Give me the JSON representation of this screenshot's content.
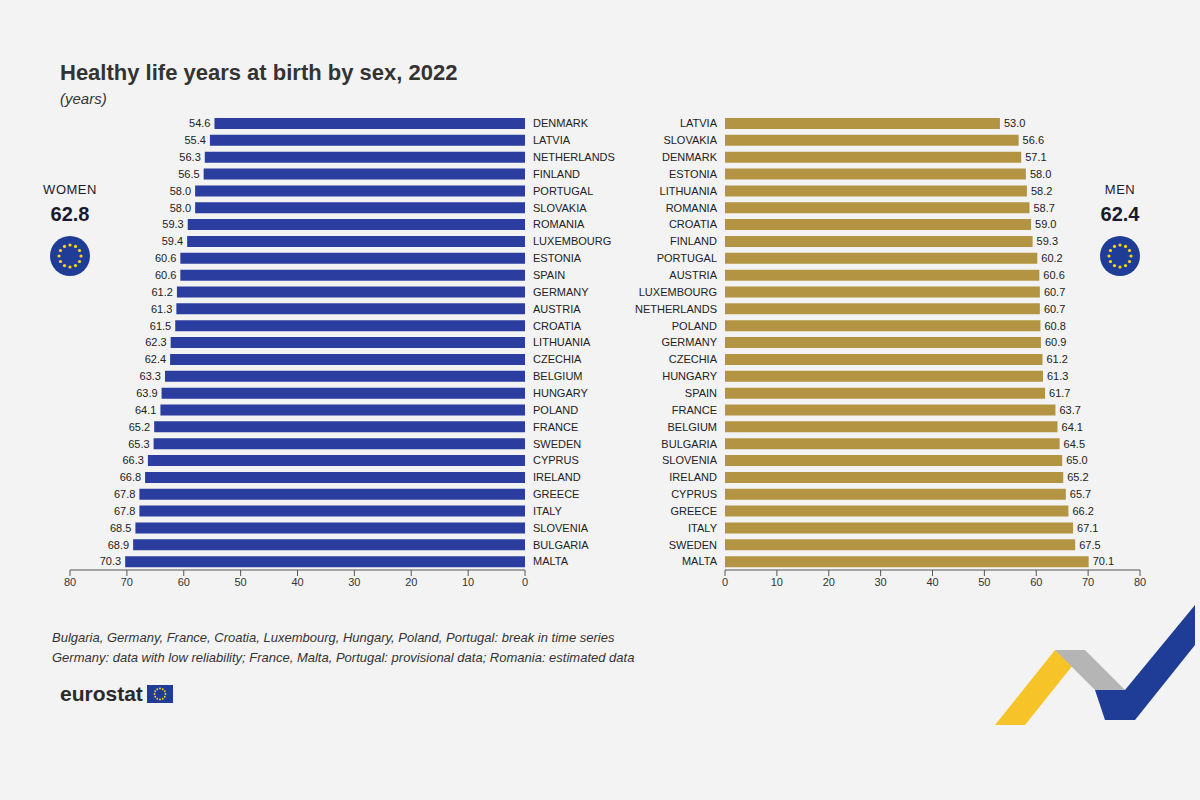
{
  "title": "Healthy life years at birth by sex, 2022",
  "subtitle": "(years)",
  "notes": [
    "Bulgaria, Germany, France, Croatia, Luxembourg, Hungary, Poland, Portugal: break in time series",
    "Germany: data with low reliability; France, Malta, Portugal: provisional data; Romania: estimated data"
  ],
  "source": "eurostat",
  "chart_data": [
    {
      "type": "bar",
      "orientation": "horizontal",
      "annotation": {
        "text": "WOMEN",
        "value": 62.8
      },
      "categories": [
        "DENMARK",
        "LATVIA",
        "NETHERLANDS",
        "FINLAND",
        "PORTUGAL",
        "SLOVAKIA",
        "ROMANIA",
        "LUXEMBOURG",
        "ESTONIA",
        "SPAIN",
        "GERMANY",
        "AUSTRIA",
        "CROATIA",
        "LITHUANIA",
        "CZECHIA",
        "BELGIUM",
        "HUNGARY",
        "POLAND",
        "FRANCE",
        "SWEDEN",
        "CYPRUS",
        "IRELAND",
        "GREECE",
        "ITALY",
        "SLOVENIA",
        "BULGARIA",
        "MALTA"
      ],
      "values": [
        54.6,
        55.4,
        56.3,
        56.5,
        58.0,
        58.0,
        59.3,
        59.4,
        60.6,
        60.6,
        61.2,
        61.3,
        61.5,
        62.3,
        62.4,
        63.3,
        63.9,
        64.1,
        65.2,
        65.3,
        66.3,
        66.8,
        67.8,
        67.8,
        68.5,
        68.9,
        70.3
      ],
      "value_labels": [
        "54.6",
        "55.4",
        "56.3",
        "56.5",
        "58.0",
        "58.0",
        "59.3",
        "59.4",
        "60.6",
        "60.6",
        "61.2",
        "61.3",
        "61.5",
        "62.3",
        "62.4",
        "63.3",
        "63.9",
        "64.1",
        "65.2",
        "65.3",
        "66.3",
        "66.8",
        "67.8",
        "67.8",
        "68.5",
        "68.9",
        "70.3"
      ],
      "color": "#2b3d9f",
      "xlim": [
        80,
        0
      ],
      "xticks": [
        80,
        70,
        60,
        50,
        40,
        30,
        20,
        10,
        0
      ],
      "grid": false,
      "data_labels": true
    },
    {
      "type": "bar",
      "orientation": "horizontal",
      "annotation": {
        "text": "MEN",
        "value": 62.4
      },
      "categories": [
        "LATVIA",
        "SLOVAKIA",
        "DENMARK",
        "ESTONIA",
        "LITHUANIA",
        "ROMANIA",
        "CROATIA",
        "FINLAND",
        "PORTUGAL",
        "AUSTRIA",
        "LUXEMBOURG",
        "NETHERLANDS",
        "POLAND",
        "GERMANY",
        "CZECHIA",
        "HUNGARY",
        "SPAIN",
        "FRANCE",
        "BELGIUM",
        "BULGARIA",
        "SLOVENIA",
        "IRELAND",
        "CYPRUS",
        "GREECE",
        "ITALY",
        "SWEDEN",
        "MALTA"
      ],
      "values": [
        53.0,
        56.6,
        57.1,
        58.0,
        58.2,
        58.7,
        59.0,
        59.3,
        60.2,
        60.6,
        60.7,
        60.7,
        60.8,
        60.9,
        61.2,
        61.3,
        61.7,
        63.7,
        64.1,
        64.5,
        65.0,
        65.2,
        65.7,
        66.2,
        67.1,
        67.5,
        70.1
      ],
      "value_labels": [
        "53.0",
        "56.6",
        "57.1",
        "58.0",
        "58.2",
        "58.7",
        "59.0",
        "59.3",
        "60.2",
        "60.6",
        "60.7",
        "60.7",
        "60.8",
        "60.9",
        "61.2",
        "61.3",
        "61.7",
        "63.7",
        "64.1",
        "64.5",
        "65.0",
        "65.2",
        "65.7",
        "66.2",
        "67.1",
        "67.5",
        "70.1"
      ],
      "color": "#b39442",
      "xlim": [
        0,
        80
      ],
      "xticks": [
        0,
        10,
        20,
        30,
        40,
        50,
        60,
        70,
        80
      ],
      "grid": false,
      "data_labels": true
    }
  ]
}
